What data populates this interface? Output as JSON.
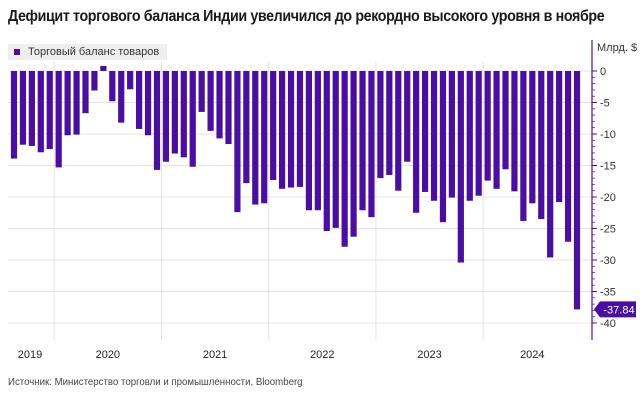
{
  "title": "Дефицит торгового баланса Индии увеличился до рекордно высокого уровня в ноябре",
  "source": "Источник: Министерство торговли и промышленности, Bloomberg",
  "colors": {
    "bar": "#4b0fa0",
    "grid": "#e4e4e4",
    "axis": "#4b0fa0"
  },
  "chart_data": {
    "type": "bar",
    "title": "Дефицит торгового баланса Индии увеличился до рекордно высокого уровня в ноябре",
    "ylabel": "Млрд. $",
    "legend": [
      "Торговый баланс товаров"
    ],
    "legend_position": "top-left",
    "ylim": [
      -40,
      0
    ],
    "yticks": [
      0,
      -5,
      -10,
      -15,
      -20,
      -25,
      -30,
      -35,
      -40
    ],
    "ytick_labels": [
      "0",
      "-5",
      "-10",
      "-15",
      "-20",
      "-25",
      "-30",
      "-35",
      "-40"
    ],
    "x_start": "2019-08",
    "x_end": "2024-11",
    "year_labels": [
      "2019",
      "2020",
      "2021",
      "2022",
      "2023",
      "2024"
    ],
    "last_value_label": "-37.84",
    "series": [
      {
        "name": "Торговый баланс товаров",
        "values": [
          -13.9,
          -11.7,
          -11.9,
          -12.9,
          -12.4,
          -15.3,
          -10.2,
          -10.1,
          -6.7,
          -3.1,
          0.8,
          -4.8,
          -8.2,
          -2.9,
          -9.2,
          -10.2,
          -15.7,
          -14.4,
          -13.1,
          -13.7,
          -15.2,
          -6.5,
          -9.5,
          -10.7,
          -11.6,
          -22.4,
          -17.8,
          -21.2,
          -21.0,
          -17.3,
          -18.7,
          -18.5,
          -18.4,
          -22.1,
          -22.1,
          -25.4,
          -24.9,
          -27.9,
          -26.3,
          -22.1,
          -23.2,
          -17.0,
          -16.5,
          -19.0,
          -14.4,
          -22.5,
          -19.2,
          -20.6,
          -24.0,
          -20.1,
          -30.4,
          -20.6,
          -19.8,
          -17.4,
          -18.7,
          -15.6,
          -19.1,
          -23.8,
          -21.0,
          -23.5,
          -29.6,
          -20.8,
          -27.1,
          -37.84
        ]
      }
    ],
    "grid": true
  }
}
